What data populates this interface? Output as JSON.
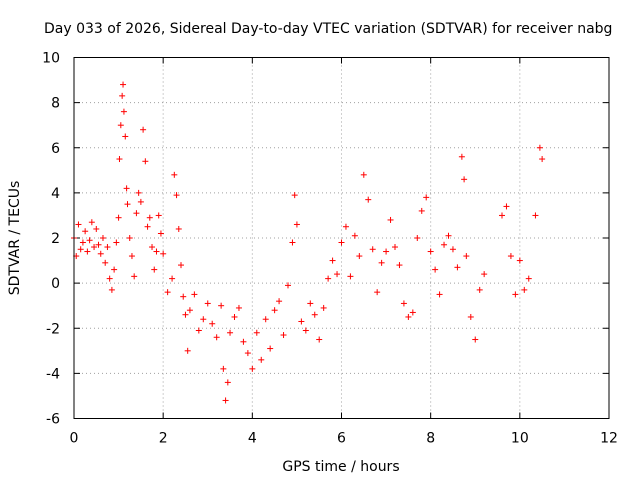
{
  "chart_data": {
    "type": "scatter",
    "title": "Day 033 of 2026, Sidereal Day-to-day VTEC variation (SDTVAR) for receiver nabg",
    "xlabel": "GPS time / hours",
    "ylabel": "SDTVAR / TECUs",
    "xlim": [
      0,
      12
    ],
    "ylim": [
      -6,
      10
    ],
    "xticks": [
      0,
      2,
      4,
      6,
      8,
      10,
      12
    ],
    "yticks": [
      -6,
      -4,
      -2,
      0,
      2,
      4,
      6,
      8,
      10
    ],
    "grid": true,
    "marker": "+",
    "color": "#ff0000",
    "series": [
      {
        "name": "SDTVAR",
        "x": [
          0.0,
          0.05,
          0.1,
          0.15,
          0.2,
          0.25,
          0.3,
          0.35,
          0.4,
          0.45,
          0.5,
          0.55,
          0.6,
          0.65,
          0.7,
          0.75,
          0.8,
          0.85,
          0.9,
          0.95,
          1.0,
          1.02,
          1.05,
          1.08,
          1.1,
          1.12,
          1.15,
          1.18,
          1.2,
          1.25,
          1.3,
          1.35,
          1.4,
          1.45,
          1.5,
          1.55,
          1.6,
          1.65,
          1.7,
          1.75,
          1.8,
          1.85,
          1.9,
          1.95,
          2.0,
          2.1,
          2.2,
          2.25,
          2.3,
          2.35,
          2.4,
          2.45,
          2.5,
          2.55,
          2.6,
          2.7,
          2.8,
          2.9,
          3.0,
          3.1,
          3.2,
          3.3,
          3.35,
          3.4,
          3.45,
          3.5,
          3.6,
          3.7,
          3.8,
          3.9,
          4.0,
          4.1,
          4.2,
          4.3,
          4.4,
          4.5,
          4.6,
          4.7,
          4.8,
          4.9,
          4.95,
          5.0,
          5.1,
          5.2,
          5.3,
          5.4,
          5.5,
          5.6,
          5.7,
          5.8,
          5.9,
          6.0,
          6.1,
          6.2,
          6.3,
          6.4,
          6.5,
          6.6,
          6.7,
          6.8,
          6.9,
          7.0,
          7.1,
          7.2,
          7.3,
          7.4,
          7.5,
          7.6,
          7.7,
          7.8,
          7.9,
          8.0,
          8.1,
          8.2,
          8.3,
          8.4,
          8.5,
          8.6,
          8.7,
          8.75,
          8.8,
          8.9,
          9.0,
          9.1,
          9.2,
          9.6,
          9.7,
          9.8,
          9.9,
          10.0,
          10.1,
          10.2,
          10.35,
          10.45,
          10.5
        ],
        "y": [
          2.0,
          1.2,
          2.6,
          1.5,
          1.8,
          2.3,
          1.4,
          1.9,
          2.7,
          1.6,
          2.4,
          1.7,
          1.3,
          2.0,
          0.9,
          1.6,
          0.2,
          -0.3,
          0.6,
          1.8,
          2.9,
          5.5,
          7.0,
          8.3,
          8.8,
          7.6,
          6.5,
          4.2,
          3.5,
          2.0,
          1.2,
          0.3,
          3.1,
          4.0,
          3.6,
          6.8,
          5.4,
          2.5,
          2.9,
          1.6,
          0.6,
          1.4,
          3.0,
          2.2,
          1.3,
          -0.4,
          0.2,
          4.8,
          3.9,
          2.4,
          0.8,
          -0.6,
          -1.4,
          -3.0,
          -1.2,
          -0.5,
          -2.1,
          -1.6,
          -0.9,
          -1.8,
          -2.4,
          -1.0,
          -3.8,
          -5.2,
          -4.4,
          -2.2,
          -1.5,
          -1.1,
          -2.6,
          -3.1,
          -3.8,
          -2.2,
          -3.4,
          -1.6,
          -2.9,
          -1.2,
          -0.8,
          -2.3,
          -0.1,
          1.8,
          3.9,
          2.6,
          -1.7,
          -2.1,
          -0.9,
          -1.4,
          -2.5,
          -1.1,
          0.2,
          1.0,
          0.4,
          1.8,
          2.5,
          0.3,
          2.1,
          1.2,
          4.8,
          3.7,
          1.5,
          -0.4,
          0.9,
          1.4,
          2.8,
          1.6,
          0.8,
          -0.9,
          -1.5,
          -1.3,
          2.0,
          3.2,
          3.8,
          1.4,
          0.6,
          -0.5,
          1.7,
          2.1,
          1.5,
          0.7,
          5.6,
          4.6,
          1.2,
          -1.5,
          -2.5,
          -0.3,
          0.4,
          3.0,
          3.4,
          1.2,
          -0.5,
          1.0,
          -0.3,
          0.2,
          3.0,
          6.0,
          5.5
        ]
      }
    ]
  }
}
